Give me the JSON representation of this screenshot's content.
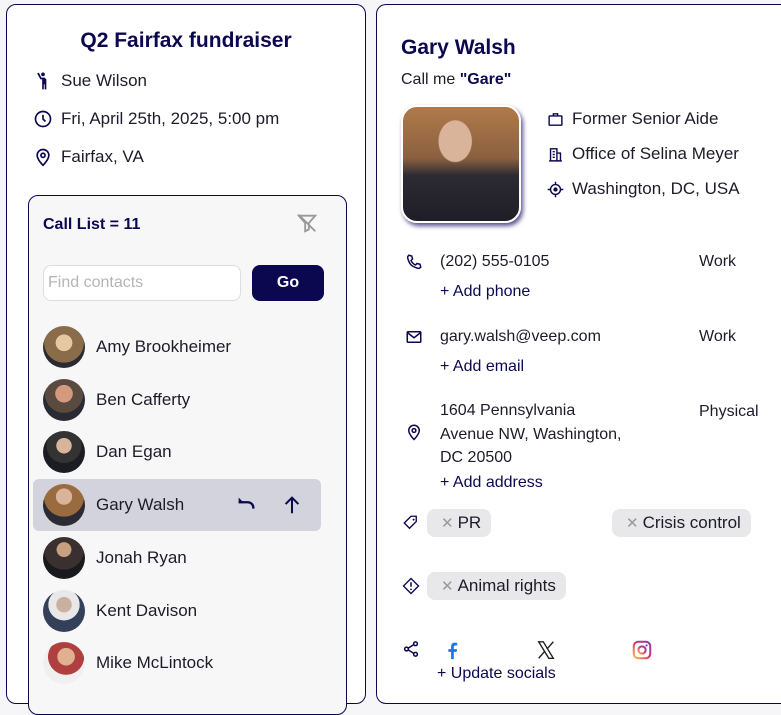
{
  "event": {
    "title": "Q2 Fairfax fundraiser",
    "host": "Sue Wilson",
    "datetime": "Fri, April 25th, 2025, 5:00 pm",
    "location": "Fairfax, VA"
  },
  "call_list": {
    "title": "Call List = 11",
    "search_placeholder": "Find contacts",
    "go_label": "Go",
    "contacts": [
      {
        "name": "Amy Brookheimer"
      },
      {
        "name": "Ben Cafferty"
      },
      {
        "name": "Dan Egan"
      },
      {
        "name": "Gary Walsh",
        "selected": true
      },
      {
        "name": "Jonah Ryan"
      },
      {
        "name": "Kent Davison"
      },
      {
        "name": "Mike McLintock"
      }
    ]
  },
  "contact": {
    "name": "Gary Walsh",
    "callme_prefix": "Call me",
    "nickname": "\"Gare\"",
    "title": "Former Senior Aide",
    "organization": "Office of Selina Meyer",
    "location": "Washington, DC, USA",
    "phone": "(202) 555-0105",
    "phone_type": "Work",
    "add_phone": "+ Add phone",
    "email": "gary.walsh@veep.com",
    "email_type": "Work",
    "add_email": "+ Add email",
    "address_lines": [
      "1604 Pennsylvania",
      "Avenue NW, Washington,",
      "DC 20500"
    ],
    "address_type": "Physical",
    "add_address": "+ Add address",
    "tags": [
      "PR",
      "Crisis control"
    ],
    "issues": [
      "Animal rights"
    ],
    "update_socials": "+ Update socials",
    "socials": [
      "facebook-icon",
      "x-icon",
      "instagram-icon"
    ]
  },
  "colors": {
    "accent": "#0b0850",
    "selected_row": "#d3d3dd",
    "chip": "#e8e8ea",
    "facebook": "#1877f2"
  }
}
